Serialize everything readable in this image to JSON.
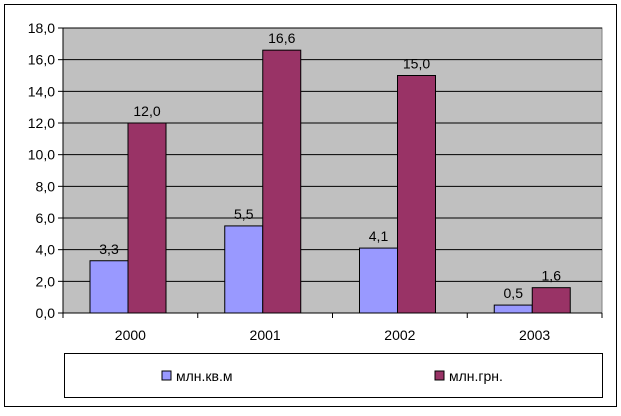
{
  "chart_data": {
    "type": "bar",
    "categories": [
      "2000",
      "2001",
      "2002",
      "2003"
    ],
    "series": [
      {
        "name": "млн.кв.м",
        "values": [
          3.3,
          5.5,
          4.1,
          0.5
        ],
        "labels": [
          "3,3",
          "5,5",
          "4,1",
          "0,5"
        ],
        "color": "#9999FF"
      },
      {
        "name": "млн.грн.",
        "values": [
          12.0,
          16.6,
          15.0,
          1.6
        ],
        "labels": [
          "12,0",
          "16,6",
          "15,0",
          "1,6"
        ],
        "color": "#993366"
      }
    ],
    "ylim": [
      0,
      18
    ],
    "yticks": [
      0,
      2,
      4,
      6,
      8,
      10,
      12,
      14,
      16,
      18
    ],
    "ytick_labels": [
      "0,0",
      "2,0",
      "4,0",
      "6,0",
      "8,0",
      "10,0",
      "12,0",
      "14,0",
      "16,0",
      "18,0"
    ],
    "grid": true,
    "legend_position": "bottom",
    "plot_background": "#C0C0C0"
  }
}
